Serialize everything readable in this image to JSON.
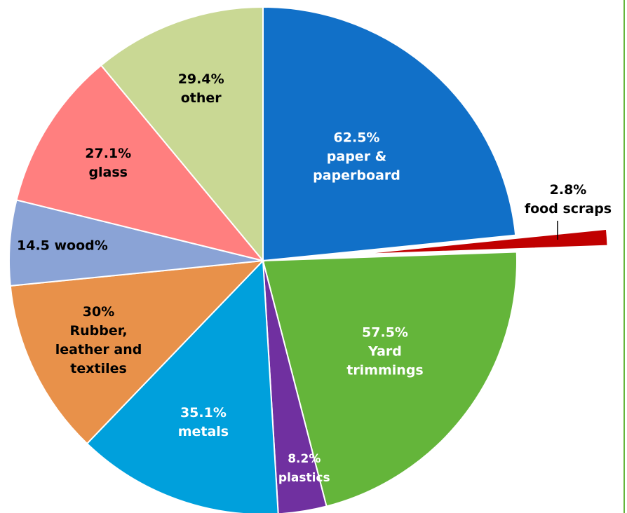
{
  "chart_data": {
    "type": "pie",
    "categories": [
      "paper & paperboard",
      "food scraps",
      "Yard trimmings",
      "plastics",
      "metals",
      "Rubber, leather and textiles",
      null,
      "glass",
      "other"
    ],
    "values": [
      62.5,
      2.8,
      57.5,
      8.2,
      35.1,
      30,
      14.5,
      27.1,
      29.4
    ],
    "value_labels": [
      "62.5%",
      "2.8%",
      "57.5%",
      "8.2%",
      "35.1%",
      "30%",
      "14.5 wood%",
      "27.1%",
      "29.4%"
    ],
    "colors": [
      "#1170c8",
      "#c00000",
      "#64b53a",
      "#7030a0",
      "#00a0dc",
      "#e8914a",
      "#8aa3d6",
      "#ff7f7f",
      "#c9d894"
    ]
  }
}
